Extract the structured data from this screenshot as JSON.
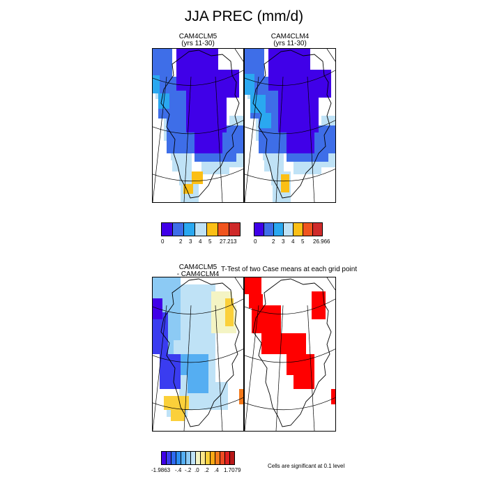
{
  "title": "JJA PREC (mm/d)",
  "colors": {
    "prec_scale": [
      "#4000e8",
      "#3e6ee8",
      "#2aa8f0",
      "#bfe2f6",
      "#fbbf16",
      "#f0541e",
      "#cf2a2a"
    ],
    "diff_scale": [
      "#4000e8",
      "#3a3cf0",
      "#2e6af0",
      "#2c8ef2",
      "#55aef2",
      "#8ccaf4",
      "#bfe2f6",
      "#f4f4c4",
      "#fbe68a",
      "#fbd03a",
      "#fba814",
      "#f47a1c",
      "#ee4c22",
      "#e02020",
      "#b81818"
    ],
    "significant": "#ff0000"
  },
  "panels": {
    "clm5": {
      "title_line1": "CAM4CLM5",
      "title_line2": "(yrs 11-30)"
    },
    "clm4": {
      "title_line1": "CAM4CLM4",
      "title_line2": "(yrs 11-30)"
    },
    "diff": {
      "title_line1": "CAM4CLM5",
      "title_line2": "- CAM4CLM4"
    },
    "ttest": {
      "title": "T-Test of two Case means at each grid point"
    }
  },
  "colorbars": {
    "clm5": {
      "labels": [
        "0",
        "2",
        "3",
        "4",
        "5",
        "27.213"
      ]
    },
    "clm4": {
      "labels": [
        "0",
        "2",
        "3",
        "4",
        "5",
        "26.966"
      ]
    },
    "diff": {
      "labels": [
        "-1.9863",
        "-.4",
        "-.2",
        ".0",
        ".2",
        ".4",
        "1.7079"
      ]
    }
  },
  "significance_note": "Cells are significant at 0.1 level",
  "chart_data": [
    {
      "type": "heatmap",
      "title": "CAM4CLM5",
      "subtitle": "(yrs 11-30)",
      "units": "mm/d",
      "levels": [
        0,
        2,
        3,
        4,
        5
      ],
      "max": 27.213,
      "region": "Greenland"
    },
    {
      "type": "heatmap",
      "title": "CAM4CLM4",
      "subtitle": "(yrs 11-30)",
      "units": "mm/d",
      "levels": [
        0,
        2,
        3,
        4,
        5
      ],
      "max": 26.966,
      "region": "Greenland"
    },
    {
      "type": "heatmap",
      "title": "CAM4CLM5 - CAM4CLM4",
      "min": -1.9863,
      "max": 1.7079,
      "tick_labels": [
        "-1.9863",
        "-.4",
        "-.2",
        ".0",
        ".2",
        ".4",
        "1.7079"
      ],
      "region": "Greenland"
    },
    {
      "type": "heatmap",
      "title": "T-Test of two Case means at each grid point",
      "note": "Cells are significant at 0.1 level",
      "region": "Greenland"
    }
  ]
}
